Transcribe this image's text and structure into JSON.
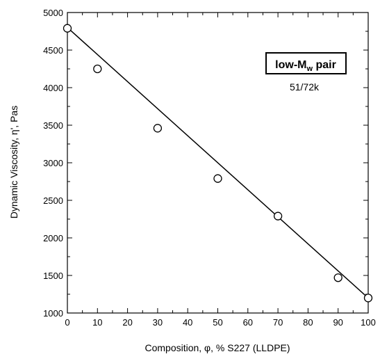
{
  "chart_data": {
    "type": "scatter",
    "xlabel": "Composition, φ, % S227 (LLDPE)",
    "ylabel": "Dynamic Viscosity, η', Pas",
    "xlim": [
      0,
      100
    ],
    "ylim": [
      1000,
      5000
    ],
    "x_ticks": [
      0,
      10,
      20,
      30,
      40,
      50,
      60,
      70,
      80,
      90,
      100
    ],
    "y_ticks": [
      1000,
      1500,
      2000,
      2500,
      3000,
      3500,
      4000,
      4500,
      5000
    ],
    "grid": false,
    "series": [
      {
        "marker": "open-circle",
        "x": [
          0,
          10,
          30,
          50,
          70,
          90,
          100
        ],
        "y": [
          4790,
          4250,
          3460,
          2790,
          2290,
          1470,
          1200
        ]
      }
    ],
    "fit_line": {
      "x": [
        0,
        100
      ],
      "y": [
        4800,
        1200
      ]
    },
    "annotation": {
      "box_main": "low-M",
      "box_sub": "w",
      "box_tail": " pair",
      "caption": "51/72k"
    }
  }
}
